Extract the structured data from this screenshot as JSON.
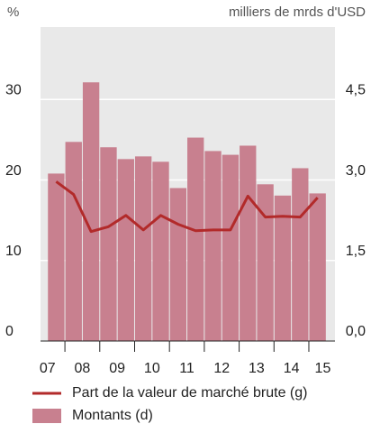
{
  "chart_data": {
    "type": "bar",
    "y_label": "%",
    "y2_label": "milliers de mrds d'USD",
    "x": [
      2007.75,
      2008.25,
      2008.75,
      2009.25,
      2009.75,
      2010.25,
      2010.75,
      2011.25,
      2011.75,
      2012.25,
      2012.75,
      2013.25,
      2013.75,
      2014.25,
      2014.75,
      2015.25
    ],
    "xlim": [
      2007.3,
      2015.75
    ],
    "xticks": [
      {
        "value": 2007.5,
        "label": "07"
      },
      {
        "value": 2008.5,
        "label": "08"
      },
      {
        "value": 2009.5,
        "label": "09"
      },
      {
        "value": 2010.5,
        "label": "10"
      },
      {
        "value": 2011.5,
        "label": "11"
      },
      {
        "value": 2012.5,
        "label": "12"
      },
      {
        "value": 2013.5,
        "label": "13"
      },
      {
        "value": 2014.5,
        "label": "14"
      },
      {
        "value": 2015.4,
        "label": "15"
      }
    ],
    "xtick_marks": [
      2008,
      2009,
      2010,
      2011,
      2012,
      2013,
      2014,
      2015
    ],
    "ylim": [
      0,
      39
    ],
    "yticks": [
      0,
      10,
      20,
      30
    ],
    "y2lim": [
      0,
      5.85
    ],
    "y2ticks": [
      {
        "value": 0,
        "label": "0,0"
      },
      {
        "value": 1.5,
        "label": "1,5"
      },
      {
        "value": 3,
        "label": "3,0"
      },
      {
        "value": 4.5,
        "label": "4,5"
      }
    ],
    "grid": true,
    "series": [
      {
        "name": "Part de la valeur de marché brute (g)",
        "type": "line",
        "color": "#b22a2a",
        "values": [
          19.8,
          18.2,
          13.6,
          14.2,
          15.6,
          13.8,
          15.6,
          14.5,
          13.7,
          13.8,
          13.8,
          18.0,
          15.4,
          15.5,
          15.4,
          17.8
        ]
      },
      {
        "name": "Montants (d)",
        "type": "bar",
        "axis": "y2",
        "color": "#c8808f",
        "values": [
          3.12,
          3.71,
          4.82,
          3.61,
          3.39,
          3.44,
          3.34,
          2.85,
          3.79,
          3.54,
          3.47,
          3.64,
          2.92,
          2.71,
          3.22,
          2.75
        ]
      }
    ]
  }
}
